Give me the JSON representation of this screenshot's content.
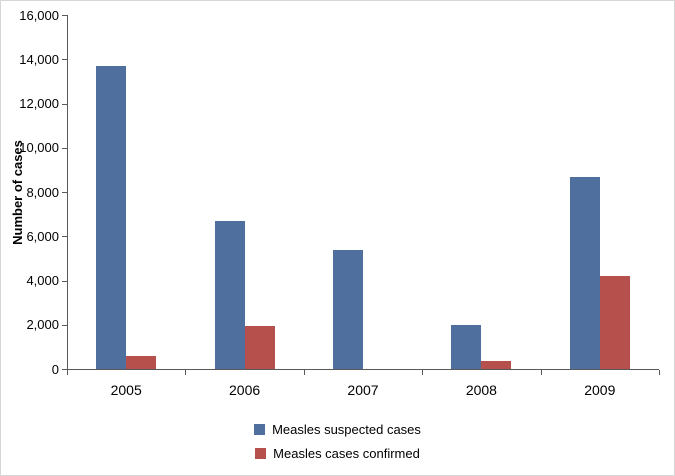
{
  "chart_data": {
    "type": "bar",
    "title": "",
    "xlabel": "",
    "ylabel": "Number of cases",
    "categories": [
      "2005",
      "2006",
      "2007",
      "2008",
      "2009"
    ],
    "series": [
      {
        "name": "Measles suspected cases",
        "color": "#4F6F9F",
        "values": [
          13700,
          6700,
          5400,
          2000,
          8700
        ]
      },
      {
        "name": "Measles cases confirmed",
        "color": "#B5504C",
        "values": [
          600,
          1950,
          0,
          350,
          4200
        ]
      }
    ],
    "ylim": [
      0,
      16000
    ],
    "ytick_step": 2000,
    "ytick_labels": [
      "0",
      "2,000",
      "4,000",
      "6,000",
      "8,000",
      "10,000",
      "12,000",
      "14,000",
      "16,000"
    ],
    "grid": false,
    "legend_position": "bottom",
    "axis_color": "#595959"
  }
}
